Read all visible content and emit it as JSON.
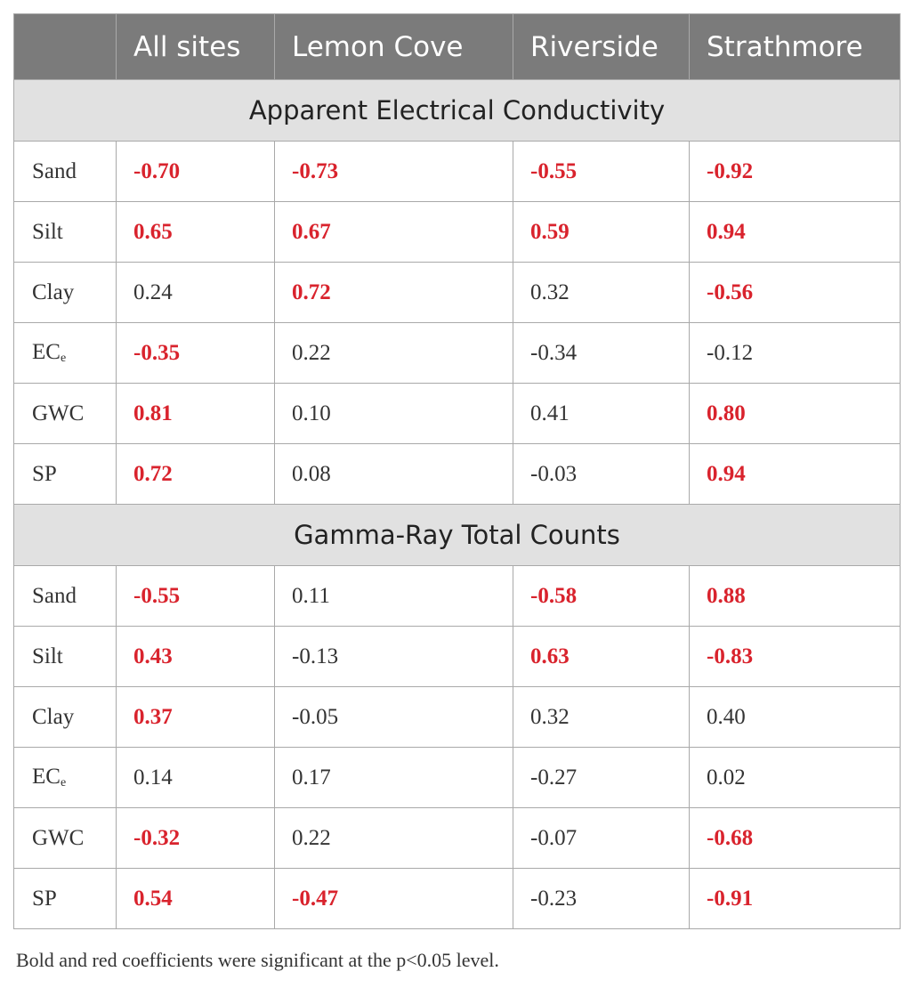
{
  "columns": [
    "",
    "All sites",
    "Lemon Cove",
    "Riverside",
    "Strathmore"
  ],
  "sections": [
    {
      "title": "Apparent Electrical Conductivity",
      "rows": [
        {
          "label": "Sand",
          "sub": "",
          "values": [
            "-0.70",
            "-0.73",
            "-0.55",
            "-0.92"
          ],
          "significant": [
            true,
            true,
            true,
            true
          ]
        },
        {
          "label": "Silt",
          "sub": "",
          "values": [
            "0.65",
            "0.67",
            "0.59",
            "0.94"
          ],
          "significant": [
            true,
            true,
            true,
            true
          ]
        },
        {
          "label": "Clay",
          "sub": "",
          "values": [
            "0.24",
            "0.72",
            "0.32",
            "-0.56"
          ],
          "significant": [
            false,
            true,
            false,
            true
          ]
        },
        {
          "label": "EC",
          "sub": "e",
          "values": [
            "-0.35",
            "0.22",
            "-0.34",
            "-0.12"
          ],
          "significant": [
            true,
            false,
            false,
            false
          ]
        },
        {
          "label": "GWC",
          "sub": "",
          "values": [
            "0.81",
            "0.10",
            "0.41",
            "0.80"
          ],
          "significant": [
            true,
            false,
            false,
            true
          ]
        },
        {
          "label": "SP",
          "sub": "",
          "values": [
            "0.72",
            "0.08",
            "-0.03",
            "0.94"
          ],
          "significant": [
            true,
            false,
            false,
            true
          ]
        }
      ]
    },
    {
      "title": "Gamma-Ray Total Counts",
      "rows": [
        {
          "label": "Sand",
          "sub": "",
          "values": [
            "-0.55",
            "0.11",
            "-0.58",
            "0.88"
          ],
          "significant": [
            true,
            false,
            true,
            true
          ]
        },
        {
          "label": "Silt",
          "sub": "",
          "values": [
            "0.43",
            "-0.13",
            "0.63",
            "-0.83"
          ],
          "significant": [
            true,
            false,
            true,
            true
          ]
        },
        {
          "label": "Clay",
          "sub": "",
          "values": [
            "0.37",
            "-0.05",
            "0.32",
            "0.40"
          ],
          "significant": [
            true,
            false,
            false,
            false
          ]
        },
        {
          "label": "EC",
          "sub": "e",
          "values": [
            "0.14",
            "0.17",
            "-0.27",
            "0.02"
          ],
          "significant": [
            false,
            false,
            false,
            false
          ]
        },
        {
          "label": "GWC",
          "sub": "",
          "values": [
            "-0.32",
            "0.22",
            "-0.07",
            "-0.68"
          ],
          "significant": [
            true,
            false,
            false,
            true
          ]
        },
        {
          "label": "SP",
          "sub": "",
          "values": [
            "0.54",
            "-0.47",
            "-0.23",
            "-0.91"
          ],
          "significant": [
            true,
            true,
            false,
            true
          ]
        }
      ]
    }
  ],
  "footnote": "Bold and red coefficients were significant at the p<0.05 level.",
  "colors": {
    "header_bg": "#7b7b7b",
    "section_bg": "#e1e1e1",
    "significant": "#d9232d"
  }
}
